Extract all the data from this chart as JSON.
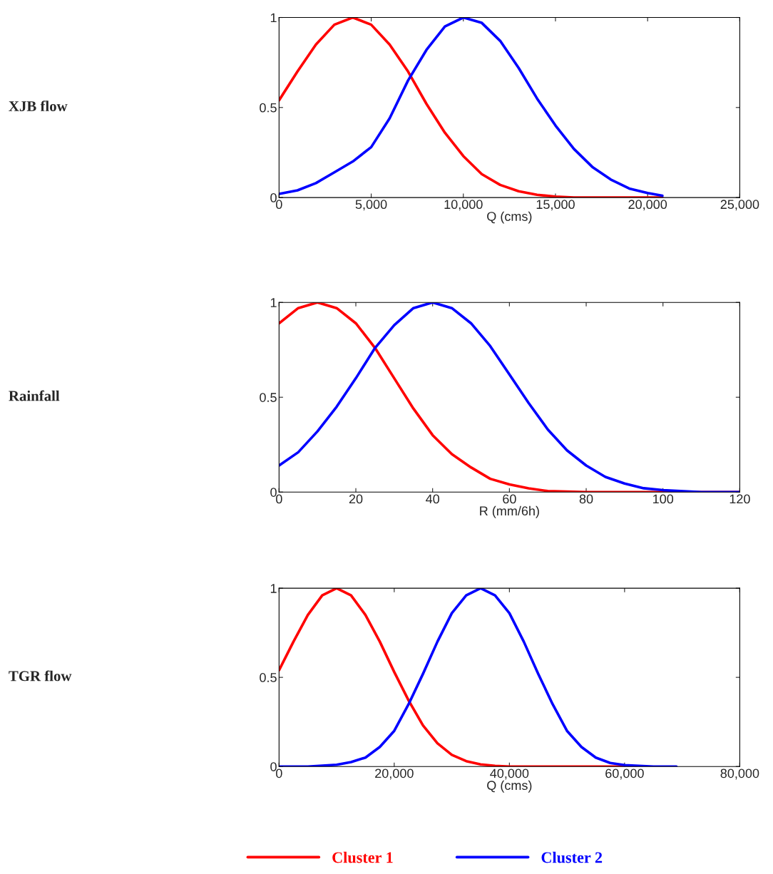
{
  "chart_data": [
    {
      "type": "line",
      "annotations": [
        "XJB flow"
      ],
      "xlabel": "Q (cms)",
      "xlim": [
        0,
        25000
      ],
      "xticks": [
        0,
        {
          "value": 5000,
          "label": "5,000"
        },
        {
          "value": 10000,
          "label": "10,000"
        },
        {
          "value": 15000,
          "label": "15,000"
        },
        {
          "value": 20000,
          "label": "20,000"
        },
        {
          "value": 25000,
          "label": "25,000"
        }
      ],
      "ylim": [
        0,
        1
      ],
      "yticks": [
        0,
        0.5,
        1
      ],
      "grid": false,
      "legend": false,
      "series": [
        {
          "color": "#ff0000",
          "x": [
            0,
            1000,
            2000,
            3000,
            4000,
            5000,
            6000,
            7000,
            8000,
            9000,
            10000,
            11000,
            12000,
            13000,
            14000,
            15000,
            16000,
            18000,
            20800
          ],
          "values": [
            0.54,
            0.7,
            0.85,
            0.96,
            1,
            0.96,
            0.85,
            0.7,
            0.52,
            0.36,
            0.23,
            0.13,
            0.07,
            0.035,
            0.015,
            0.005,
            0,
            0,
            0
          ]
        },
        {
          "color": "#0000ff",
          "x": [
            0,
            1000,
            2000,
            3000,
            4000,
            5000,
            6000,
            7000,
            8000,
            9000,
            10000,
            11000,
            12000,
            13000,
            14000,
            15000,
            16000,
            17000,
            18000,
            19000,
            20000,
            20800
          ],
          "values": [
            0.02,
            0.04,
            0.08,
            0.14,
            0.2,
            0.28,
            0.44,
            0.65,
            0.82,
            0.95,
            1,
            0.97,
            0.87,
            0.72,
            0.55,
            0.4,
            0.27,
            0.17,
            0.1,
            0.05,
            0.025,
            0.01
          ]
        }
      ]
    },
    {
      "type": "line",
      "annotations": [
        "Rainfall"
      ],
      "xlabel": "R (mm/6h)",
      "xlim": [
        0,
        120
      ],
      "xticks": [
        0,
        20,
        40,
        60,
        80,
        100,
        120
      ],
      "ylim": [
        0,
        1
      ],
      "yticks": [
        0,
        0.5,
        1
      ],
      "grid": false,
      "legend": false,
      "series": [
        {
          "color": "#ff0000",
          "x": [
            0,
            5,
            10,
            15,
            20,
            25,
            30,
            35,
            40,
            45,
            50,
            55,
            60,
            65,
            70,
            80,
            100,
            120
          ],
          "values": [
            0.89,
            0.97,
            1,
            0.97,
            0.89,
            0.76,
            0.6,
            0.44,
            0.3,
            0.2,
            0.13,
            0.07,
            0.04,
            0.02,
            0.005,
            0,
            0,
            0
          ]
        },
        {
          "color": "#0000ff",
          "x": [
            0,
            5,
            10,
            15,
            20,
            25,
            30,
            35,
            40,
            45,
            50,
            55,
            60,
            65,
            70,
            75,
            80,
            85,
            90,
            95,
            100,
            110,
            120
          ],
          "values": [
            0.14,
            0.21,
            0.32,
            0.45,
            0.6,
            0.76,
            0.88,
            0.97,
            1,
            0.97,
            0.89,
            0.77,
            0.62,
            0.47,
            0.33,
            0.22,
            0.14,
            0.08,
            0.045,
            0.02,
            0.01,
            0,
            0
          ]
        }
      ]
    },
    {
      "type": "line",
      "annotations": [
        "TGR flow"
      ],
      "xlabel": "Q (cms)",
      "xlim": [
        0,
        80000
      ],
      "xticks": [
        0,
        {
          "value": 20000,
          "label": "20,000"
        },
        {
          "value": 40000,
          "label": "40,000"
        },
        {
          "value": 60000,
          "label": "60,000"
        },
        {
          "value": 80000,
          "label": "80,000"
        }
      ],
      "ylim": [
        0,
        1
      ],
      "yticks": [
        0,
        0.5,
        1
      ],
      "grid": false,
      "legend": "bottom",
      "series": [
        {
          "name": "Cluster 1",
          "color": "#ff0000",
          "x": [
            0,
            2500,
            5000,
            7500,
            10000,
            12500,
            15000,
            17500,
            20000,
            22500,
            25000,
            27500,
            30000,
            32500,
            35000,
            37500,
            40000,
            50000,
            62000
          ],
          "values": [
            0.54,
            0.7,
            0.85,
            0.96,
            1,
            0.96,
            0.85,
            0.7,
            0.53,
            0.37,
            0.23,
            0.13,
            0.065,
            0.03,
            0.012,
            0.004,
            0,
            0,
            0
          ]
        },
        {
          "name": "Cluster 2",
          "color": "#0000ff",
          "x": [
            0,
            5000,
            10000,
            12500,
            15000,
            17500,
            20000,
            22500,
            25000,
            27500,
            30000,
            32500,
            35000,
            37500,
            40000,
            42500,
            45000,
            47500,
            50000,
            52500,
            55000,
            57500,
            60000,
            65000,
            69000
          ],
          "values": [
            0,
            0,
            0.01,
            0.025,
            0.05,
            0.11,
            0.2,
            0.35,
            0.52,
            0.7,
            0.86,
            0.96,
            1,
            0.96,
            0.86,
            0.7,
            0.52,
            0.35,
            0.2,
            0.11,
            0.05,
            0.02,
            0.008,
            0,
            0
          ]
        }
      ]
    }
  ]
}
